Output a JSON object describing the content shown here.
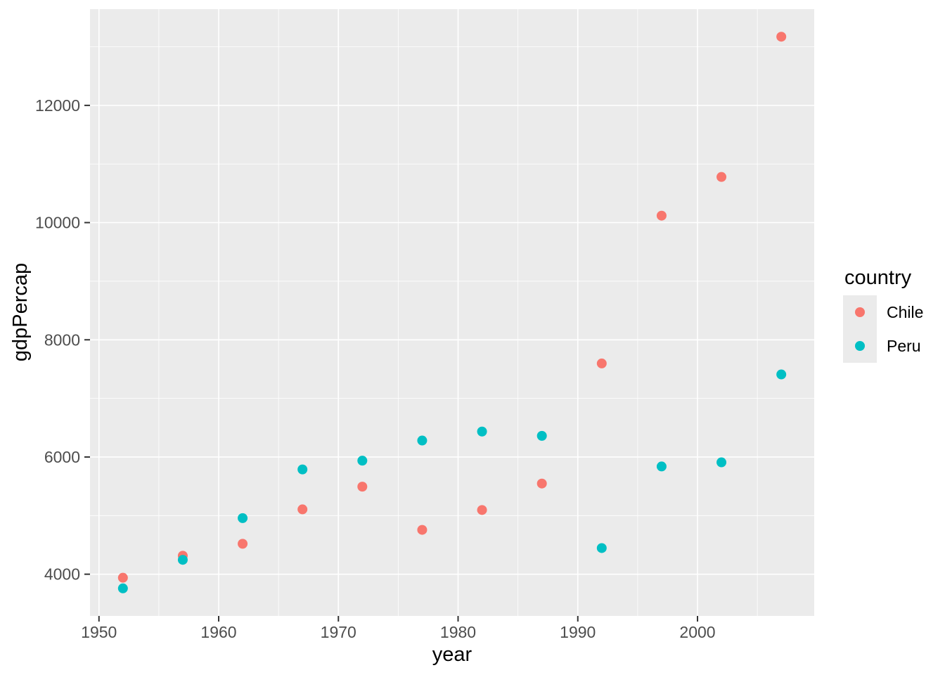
{
  "chart_data": {
    "type": "scatter",
    "title": "",
    "xlabel": "year",
    "ylabel": "gdpPercap",
    "x": [
      1952,
      1957,
      1962,
      1967,
      1972,
      1977,
      1982,
      1987,
      1992,
      1997,
      2002,
      2007
    ],
    "series": [
      {
        "name": "Chile",
        "color": "#F8766D",
        "values": [
          3939.98,
          4315.62,
          4519.09,
          5106.65,
          5494.02,
          4756.76,
          5095.67,
          5547.06,
          7596.13,
          10118.05,
          10778.78,
          13171.64
        ]
      },
      {
        "name": "Peru",
        "color": "#00BFC4",
        "values": [
          3758.52,
          4245.26,
          4957.04,
          5788.09,
          5937.83,
          6281.29,
          6434.5,
          6360.94,
          4446.38,
          5838.35,
          5909.02,
          7408.91
        ]
      }
    ],
    "legend": {
      "title": "country",
      "position": "right"
    },
    "axes": {
      "x_ticks": [
        1950,
        1960,
        1970,
        1980,
        1990,
        2000
      ],
      "x_minor_ticks": [
        1955,
        1965,
        1975,
        1985,
        1995,
        2005
      ],
      "y_ticks": [
        4000,
        6000,
        8000,
        10000,
        12000
      ],
      "y_minor_ticks": [
        5000,
        7000,
        9000,
        11000,
        13000
      ],
      "xlim": [
        1949.25,
        2009.75
      ],
      "ylim": [
        3287.9,
        13642.3
      ],
      "grid": "on"
    },
    "style": {
      "panel_background": "#EBEBEB",
      "grid_color": "#FFFFFF",
      "tick_mark_color": "#333333",
      "axis_text_color": "#4D4D4D",
      "title_color": "#000000",
      "point_radius": 7
    }
  }
}
